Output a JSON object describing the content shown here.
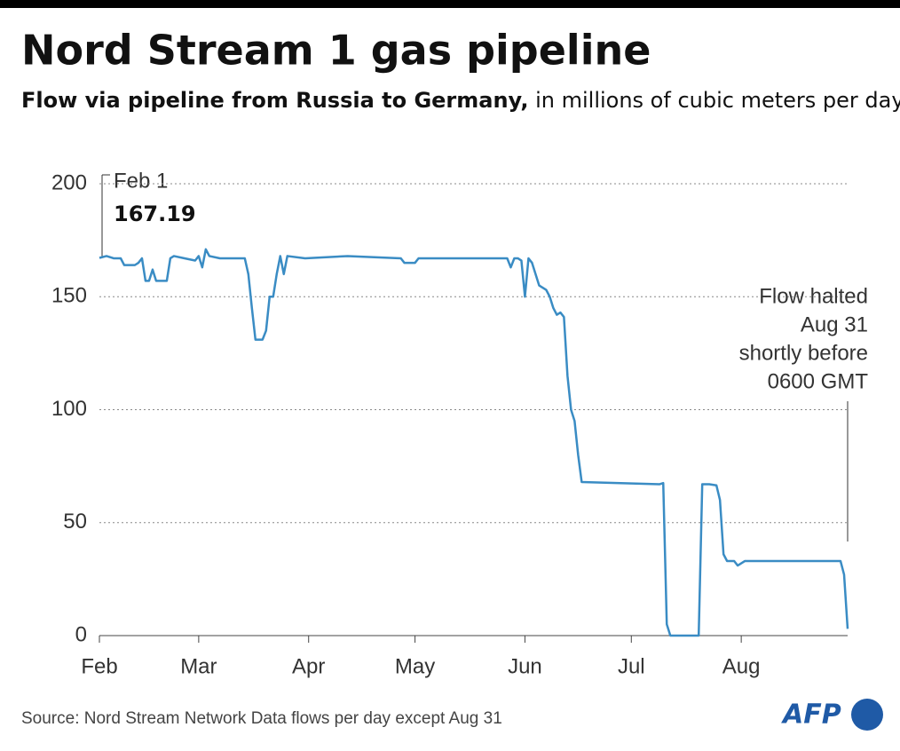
{
  "chart_data": {
    "type": "line",
    "title": "Nord Stream 1 gas pipeline",
    "subtitle_bold": "Flow via pipeline from Russia to Germany,",
    "subtitle": "in millions of cubic meters per day",
    "source": "Source: Nord Stream Network Data flows per day except Aug 31",
    "logo": "AFP",
    "start_label": "Feb 1",
    "start_value": "167.19",
    "end_note": [
      "Flow halted",
      "Aug 31",
      "shortly before",
      "0600 GMT"
    ],
    "color": "#3a8cc4",
    "grid": true,
    "xlim": [
      0,
      211
    ],
    "xticks": [
      {
        "value": 0,
        "label": "Feb"
      },
      {
        "value": 28,
        "label": "Mar"
      },
      {
        "value": 59,
        "label": "Apr"
      },
      {
        "value": 89,
        "label": "May"
      },
      {
        "value": 120,
        "label": "Jun"
      },
      {
        "value": 150,
        "label": "Jul"
      },
      {
        "value": 181,
        "label": "Aug"
      }
    ],
    "ylim": [
      0,
      200
    ],
    "yticks": [
      0,
      50,
      100,
      150,
      200
    ],
    "series": [
      {
        "name": "Flow",
        "x": [
          0,
          2,
          4,
          6,
          7,
          10,
          11,
          12,
          13,
          14,
          15,
          16,
          19,
          20,
          21,
          24,
          27,
          28,
          29,
          30,
          31,
          34,
          41,
          42,
          43,
          44,
          46,
          47,
          48,
          49,
          50,
          51,
          52,
          53,
          58,
          70,
          85,
          86,
          89,
          90,
          100,
          115,
          116,
          117,
          118,
          119,
          120,
          121,
          122,
          124,
          126,
          127,
          128,
          129,
          130,
          131,
          132,
          133,
          134,
          135,
          136,
          158,
          159,
          160,
          161,
          168,
          169,
          170,
          172,
          174,
          175,
          176,
          177,
          179,
          180,
          181,
          182,
          200,
          209,
          210,
          211
        ],
        "values": [
          167.19,
          168,
          167,
          167,
          164,
          164,
          165,
          167,
          157,
          157,
          162,
          157,
          157,
          167,
          168,
          167,
          166,
          168,
          163,
          171,
          168,
          167,
          167,
          160,
          145,
          131,
          131,
          135,
          150,
          150,
          160,
          168,
          160,
          168,
          167,
          168,
          167,
          165,
          165,
          167,
          167,
          167,
          163,
          167,
          167,
          166,
          150,
          167,
          165,
          155,
          153,
          150,
          145,
          142,
          143,
          141,
          115,
          100,
          95,
          80,
          68,
          67,
          67.5,
          5,
          0,
          0,
          0,
          67,
          67,
          66.5,
          60,
          36,
          33,
          33,
          31,
          32,
          33,
          33,
          33,
          27,
          3
        ]
      }
    ]
  }
}
